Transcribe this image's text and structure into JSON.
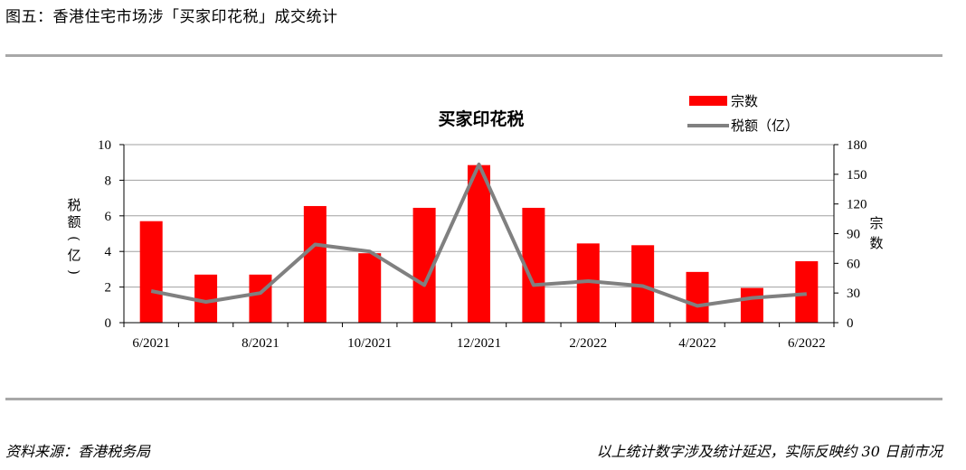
{
  "figure_title": "图五：香港住宅市场涉「买家印花税」成交统计",
  "footer": {
    "source": "资料来源：香港税务局",
    "note": "以上统计数字涉及统计延迟，实际反映约 30 日前市况"
  },
  "colors": {
    "bars": "#ff0000",
    "line": "#808080",
    "grid": "#a0a0a0"
  },
  "chart_data": {
    "type": "bar+line",
    "title": "买家印花税",
    "categories": [
      "6/2021",
      "7/2021",
      "8/2021",
      "9/2021",
      "10/2021",
      "11/2021",
      "12/2021",
      "1/2022",
      "2/2022",
      "3/2022",
      "4/2022",
      "5/2022",
      "6/2022"
    ],
    "x_tick_labels": [
      "6/2021",
      "8/2021",
      "10/2021",
      "12/2021",
      "2/2022",
      "4/2022",
      "6/2022"
    ],
    "left_axis": {
      "label": "税额（亿）",
      "label_chars": [
        "税",
        "额",
        "(",
        "亿",
        ")"
      ],
      "ylim": [
        0,
        10
      ],
      "ticks": [
        "0",
        "2",
        "4",
        "6",
        "8",
        "10"
      ]
    },
    "right_axis": {
      "label": "宗数",
      "label_chars": [
        "宗",
        "数"
      ],
      "ylim": [
        0,
        180
      ],
      "ticks": [
        "0",
        "30",
        "60",
        "90",
        "120",
        "150",
        "180"
      ]
    },
    "legend": {
      "placement": "top-right",
      "bar_label": "宗数",
      "line_label": "税额（亿）"
    },
    "series": [
      {
        "name": "宗数",
        "type": "bar",
        "axis": "left",
        "values": [
          5.7,
          2.7,
          2.7,
          6.55,
          3.9,
          6.45,
          8.85,
          6.45,
          4.45,
          4.35,
          2.85,
          1.95,
          3.45
        ]
      },
      {
        "name": "税额（亿）",
        "type": "line",
        "axis": "right",
        "values": [
          32,
          21,
          30,
          79,
          72,
          38,
          160,
          38,
          42,
          37,
          17,
          25,
          29
        ]
      }
    ],
    "grid": true
  }
}
